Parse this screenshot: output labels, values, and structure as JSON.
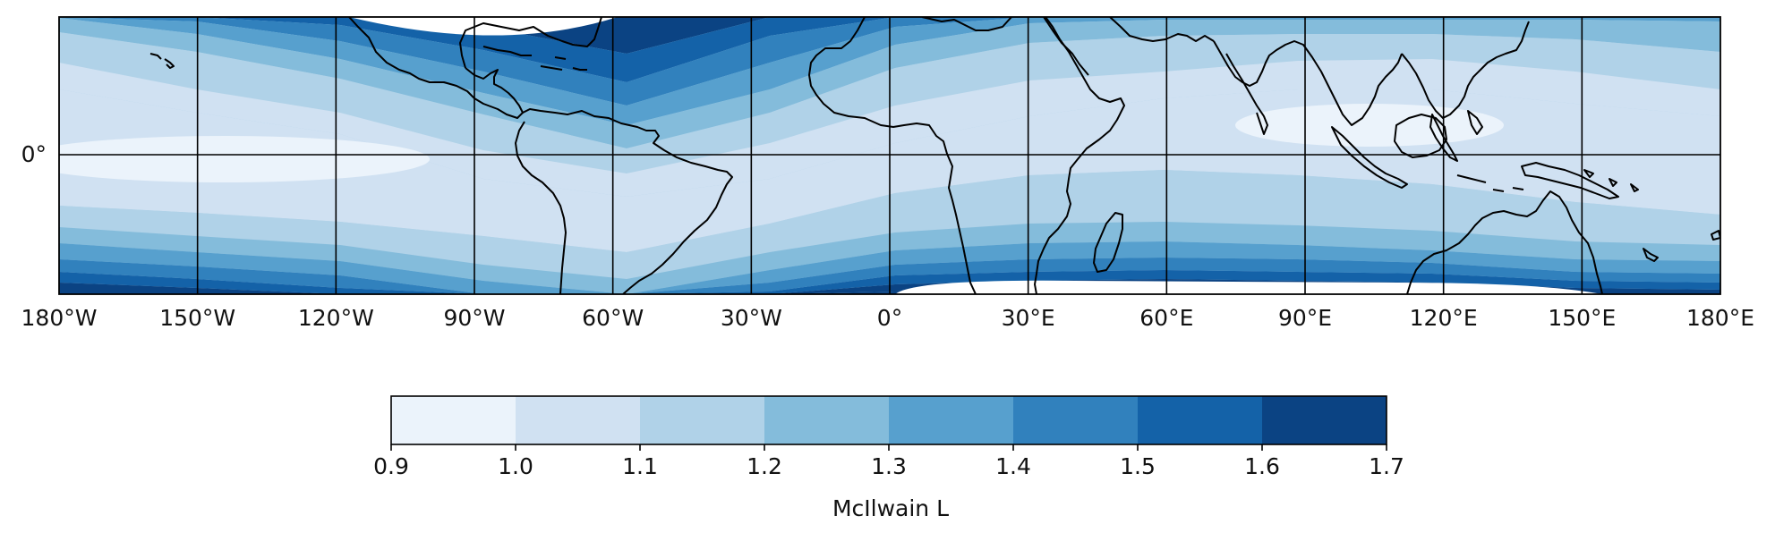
{
  "map": {
    "longitude_ticks": [
      "180°W",
      "150°W",
      "120°W",
      "90°W",
      "60°W",
      "30°W",
      "0°",
      "30°E",
      "60°E",
      "90°E",
      "120°E",
      "150°E",
      "180°E"
    ],
    "latitude_ticks": [
      "0°"
    ],
    "gridlines": true,
    "coastlines": true
  },
  "colorbar": {
    "label": "McIlwain L",
    "ticks": [
      "0.9",
      "1.0",
      "1.1",
      "1.2",
      "1.3",
      "1.4",
      "1.5",
      "1.6",
      "1.7"
    ],
    "levels": [
      0.9,
      1.0,
      1.1,
      1.2,
      1.3,
      1.4,
      1.5,
      1.6,
      1.7
    ],
    "colors": [
      "#ebf3fb",
      "#d0e1f2",
      "#b0d2e8",
      "#84bcdb",
      "#57a0ce",
      "#3181bd",
      "#1462a8",
      "#0b4383"
    ]
  },
  "chart_data": {
    "type": "heatmap",
    "variable": "McIlwain L",
    "value_range": [
      0.9,
      1.7
    ],
    "x_range_deg": [
      -180,
      180
    ],
    "x_tick_values": [
      -180,
      -150,
      -120,
      -90,
      -60,
      -30,
      0,
      30,
      60,
      90,
      120,
      150,
      180
    ]
  }
}
